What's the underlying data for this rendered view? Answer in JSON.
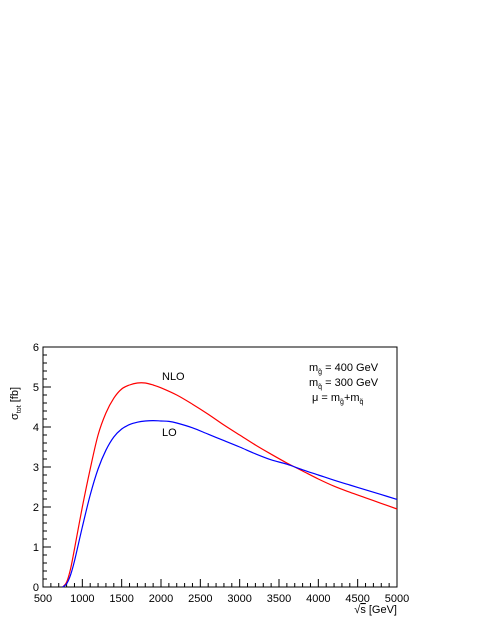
{
  "chart_data": {
    "type": "line",
    "title": "",
    "xlabel_radical": "√",
    "xlabel_var": "s",
    "xlabel_unit": " [GeV]",
    "ylabel_main": "σ",
    "ylabel_sub": "tot",
    "ylabel_unit": " [fb]",
    "xlim": [
      500,
      5000
    ],
    "ylim": [
      0,
      6
    ],
    "xticks": [
      "500",
      "1000",
      "1500",
      "2000",
      "2500",
      "3000",
      "3500",
      "4000",
      "4500",
      "5000"
    ],
    "yticks": [
      "0",
      "1",
      "2",
      "3",
      "4",
      "5",
      "6"
    ],
    "grid": false,
    "series": [
      {
        "name": "NLO",
        "color": "#ff0000",
        "x": [
          750,
          800,
          850,
          900,
          1000,
          1100,
          1200,
          1300,
          1400,
          1500,
          1600,
          1700,
          1800,
          1900,
          2000,
          2200,
          2400,
          2600,
          2800,
          3000,
          3200,
          3400,
          3600,
          3800,
          4000,
          4200,
          4400,
          4600,
          4800,
          5000
        ],
        "y": [
          0.0,
          0.12,
          0.45,
          0.95,
          2.0,
          2.95,
          3.8,
          4.35,
          4.72,
          4.95,
          5.05,
          5.1,
          5.1,
          5.05,
          4.98,
          4.8,
          4.57,
          4.32,
          4.05,
          3.8,
          3.55,
          3.32,
          3.1,
          2.9,
          2.7,
          2.52,
          2.37,
          2.23,
          2.09,
          1.95
        ]
      },
      {
        "name": "LO",
        "color": "#0000ff",
        "x": [
          750,
          800,
          850,
          900,
          1000,
          1100,
          1200,
          1300,
          1400,
          1500,
          1600,
          1700,
          1800,
          1900,
          2000,
          2100,
          2200,
          2400,
          2600,
          2800,
          3000,
          3200,
          3400,
          3600,
          3800,
          4000,
          4200,
          4400,
          4600,
          4800,
          5000
        ],
        "y": [
          0.0,
          0.08,
          0.3,
          0.65,
          1.5,
          2.3,
          2.95,
          3.42,
          3.75,
          3.95,
          4.06,
          4.12,
          4.15,
          4.16,
          4.15,
          4.14,
          4.1,
          3.98,
          3.82,
          3.66,
          3.5,
          3.33,
          3.18,
          3.07,
          2.93,
          2.8,
          2.67,
          2.55,
          2.43,
          2.31,
          2.19
        ]
      }
    ],
    "curve_labels": [
      {
        "text": "NLO",
        "series": "NLO"
      },
      {
        "text": "LO",
        "series": "LO"
      }
    ],
    "annotations": [
      {
        "prefix": "m",
        "sub": "g̃",
        "suffix": " = 400 GeV"
      },
      {
        "prefix": "m",
        "sub": "q̃",
        "suffix": " = 300 GeV"
      },
      {
        "prefix": "μ = m",
        "sub": "g̃",
        "mid": "+m",
        "sub2": "q̃"
      }
    ]
  }
}
